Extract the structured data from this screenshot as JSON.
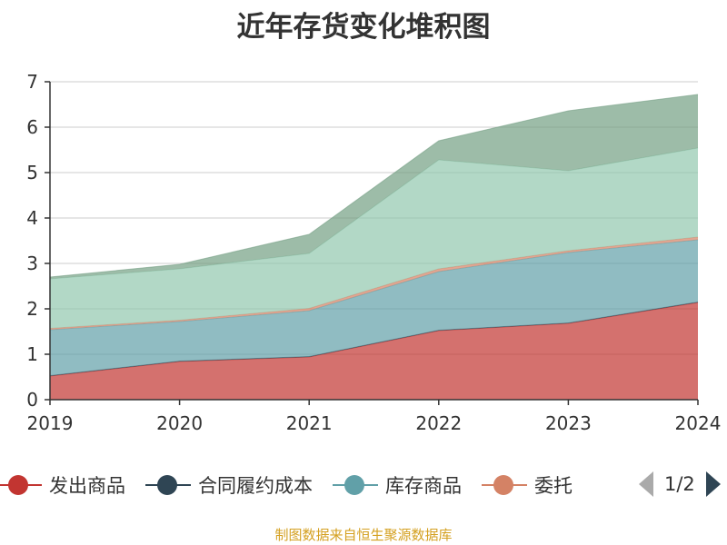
{
  "chart_data": {
    "type": "area",
    "stacked": true,
    "title": "近年存货变化堆积图",
    "categories": [
      "2019",
      "2020",
      "2021",
      "2022",
      "2023",
      "2024"
    ],
    "ylim": [
      0,
      7
    ],
    "yticks": [
      "0",
      "1",
      "2",
      "3",
      "4",
      "5",
      "6",
      "7"
    ],
    "grid": true,
    "legend_position": "bottom",
    "series": [
      {
        "name": "发出商品",
        "color": "#c23531",
        "values": [
          0.52,
          0.84,
          0.94,
          1.52,
          1.68,
          2.14
        ]
      },
      {
        "name": "合同履约成本",
        "color": "#2f4554",
        "values": [
          0.01,
          0.01,
          0.01,
          0.01,
          0.01,
          0.01
        ]
      },
      {
        "name": "库存商品",
        "color": "#61a0a8",
        "values": [
          1.01,
          0.87,
          1.01,
          1.29,
          1.55,
          1.37
        ]
      },
      {
        "name": "委托",
        "color": "#d48265",
        "values": [
          0.03,
          0.03,
          0.05,
          0.06,
          0.04,
          0.06
        ]
      },
      {
        "name": "",
        "color": "#91c7ae",
        "values": [
          1.09,
          1.13,
          1.21,
          2.4,
          1.76,
          1.96
        ]
      },
      {
        "name": "",
        "color": "#749f83",
        "values": [
          0.04,
          0.1,
          0.42,
          0.42,
          1.32,
          1.18
        ]
      }
    ]
  },
  "legend": {
    "page": "1/2"
  },
  "source": "制图数据来自恒生聚源数据库"
}
